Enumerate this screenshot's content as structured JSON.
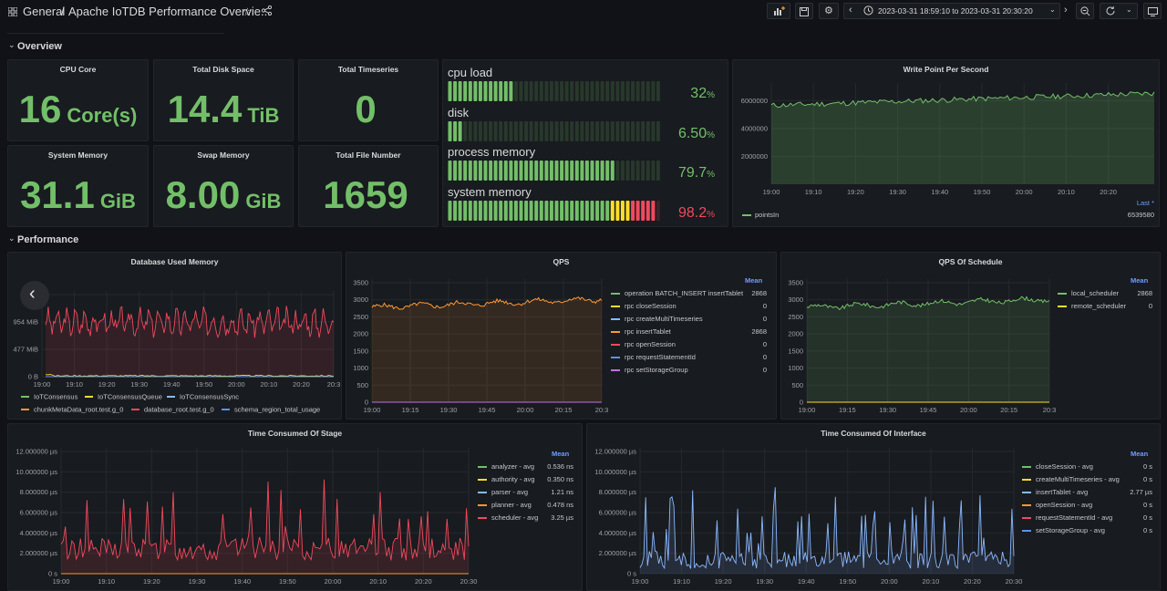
{
  "header": {
    "breadcrumb_folder": "General",
    "breadcrumb_sep": "/",
    "dashboard_title": "Apache IoTDB Performance Overvie...",
    "time_range": "2023-03-31 18:59:10 to 2023-03-31 20:30:20",
    "icons": [
      "grid-icon",
      "star-icon",
      "share-icon",
      "add-panel-icon",
      "save-icon",
      "settings-icon",
      "chevron-left-icon",
      "clock-icon",
      "chevron-down-icon",
      "chevron-right-icon",
      "zoom-out-icon",
      "refresh-icon",
      "chevron-down-icon",
      "tv-icon"
    ]
  },
  "rows": {
    "overview": "Overview",
    "performance": "Performance"
  },
  "stats": [
    {
      "title": "CPU Core",
      "value": "16",
      "unit": "Core(s)"
    },
    {
      "title": "Total Disk Space",
      "value": "14.4",
      "unit": "TiB"
    },
    {
      "title": "Total Timeseries",
      "value": "0",
      "unit": ""
    },
    {
      "title": "System Memory",
      "value": "31.1",
      "unit": "GiB"
    },
    {
      "title": "Swap Memory",
      "value": "8.00",
      "unit": "GiB"
    },
    {
      "title": "Total File Number",
      "value": "1659",
      "unit": ""
    }
  ],
  "bargauge": [
    {
      "name": "cpu load",
      "value": "32",
      "unit": "%",
      "fraction": 0.32,
      "color": "#73bf69"
    },
    {
      "name": "disk",
      "value": "6.50",
      "unit": "%",
      "fraction": 0.065,
      "color": "#73bf69"
    },
    {
      "name": "process memory",
      "value": "79.7",
      "unit": "%",
      "fraction": 0.797,
      "color": "#73bf69"
    },
    {
      "name": "system memory",
      "value": "98.2",
      "unit": "%",
      "fraction": 0.982,
      "color": "#f2495c"
    }
  ],
  "write_point": {
    "title": "Write Point Per Second",
    "y_ticks": [
      "6000000",
      "4000000",
      "2000000"
    ],
    "x_ticks": [
      "19:00",
      "19:10",
      "19:20",
      "19:30",
      "19:40",
      "19:50",
      "20:00",
      "20:10",
      "20:20"
    ],
    "legend_header": "Last *",
    "legend": [
      {
        "name": "pointsIn",
        "value": "6539580",
        "color": "#73bf69"
      }
    ]
  },
  "db_memory": {
    "title": "Database Used Memory",
    "y_ticks": [
      "1.4",
      "954 MiB",
      "477 MiB",
      "0 B"
    ],
    "x_ticks": [
      "19:00",
      "19:10",
      "19:20",
      "19:30",
      "19:40",
      "19:50",
      "20:00",
      "20:10",
      "20:20",
      "20:3"
    ],
    "legend": [
      {
        "name": "IoTConsensus",
        "color": "#73bf69"
      },
      {
        "name": "IoTConsensusQueue",
        "color": "#fade2a"
      },
      {
        "name": "IoTConsensusSync",
        "color": "#8ab8ff"
      },
      {
        "name": "chunkMetaData_root.test.g_0",
        "color": "#ff9830"
      },
      {
        "name": "database_root.test.g_0",
        "color": "#f2495c"
      },
      {
        "name": "schema_region_total_usage",
        "color": "#5794f2"
      }
    ]
  },
  "qps": {
    "title": "QPS",
    "y_ticks": [
      "3500",
      "3000",
      "2500",
      "2000",
      "1500",
      "1000",
      "500",
      "0"
    ],
    "x_ticks": [
      "19:00",
      "19:15",
      "19:30",
      "19:45",
      "20:00",
      "20:15",
      "20:3"
    ],
    "legend_header": "Mean",
    "legend": [
      {
        "name": "operation BATCH_INSERT insertTablet",
        "value": "2868",
        "color": "#73bf69"
      },
      {
        "name": "rpc closeSession",
        "value": "0",
        "color": "#fade2a"
      },
      {
        "name": "rpc createMultiTimeseries",
        "value": "0",
        "color": "#8ab8ff"
      },
      {
        "name": "rpc insertTablet",
        "value": "2868",
        "color": "#ff9830"
      },
      {
        "name": "rpc openSession",
        "value": "0",
        "color": "#f2495c"
      },
      {
        "name": "rpc requestStatementId",
        "value": "0",
        "color": "#5794f2"
      },
      {
        "name": "rpc setStorageGroup",
        "value": "0",
        "color": "#b877d9"
      }
    ]
  },
  "qps_schedule": {
    "title": "QPS Of Schedule",
    "y_ticks": [
      "3500",
      "3000",
      "2500",
      "2000",
      "1500",
      "1000",
      "500",
      "0"
    ],
    "x_ticks": [
      "19:00",
      "19:15",
      "19:30",
      "19:45",
      "20:00",
      "20:15",
      "20:3"
    ],
    "legend_header": "Mean",
    "legend": [
      {
        "name": "local_scheduler",
        "value": "2868",
        "color": "#73bf69"
      },
      {
        "name": "remote_scheduler",
        "value": "0",
        "color": "#fade2a"
      }
    ]
  },
  "stage": {
    "title": "Time Consumed Of Stage",
    "y_ticks": [
      "12.000000 µs",
      "10.000000 µs",
      "8.000000 µs",
      "6.000000 µs",
      "4.000000 µs",
      "2.000000 µs",
      "0 s"
    ],
    "x_ticks": [
      "19:00",
      "19:10",
      "19:20",
      "19:30",
      "19:40",
      "19:50",
      "20:00",
      "20:10",
      "20:20",
      "20:30"
    ],
    "legend_header": "Mean",
    "legend": [
      {
        "name": "analyzer - avg",
        "value": "0.536 ns",
        "color": "#73bf69"
      },
      {
        "name": "authority - avg",
        "value": "0.350 ns",
        "color": "#fade2a"
      },
      {
        "name": "parser - avg",
        "value": "1.21 ns",
        "color": "#8ab8ff"
      },
      {
        "name": "planner - avg",
        "value": "0.478 ns",
        "color": "#ff9830"
      },
      {
        "name": "scheduler - avg",
        "value": "3.25 µs",
        "color": "#f2495c"
      }
    ]
  },
  "interface": {
    "title": "Time Consumed Of Interface",
    "y_ticks": [
      "12.000000 µs",
      "10.000000 µs",
      "8.000000 µs",
      "6.000000 µs",
      "4.000000 µs",
      "2.000000 µs",
      "0 s"
    ],
    "x_ticks": [
      "19:00",
      "19:10",
      "19:20",
      "19:30",
      "19:40",
      "19:50",
      "20:00",
      "20:10",
      "20:20",
      "20:30"
    ],
    "legend_header": "Mean",
    "legend": [
      {
        "name": "closeSession - avg",
        "value": "0 s",
        "color": "#73bf69"
      },
      {
        "name": "createMultiTimeseries - avg",
        "value": "0 s",
        "color": "#fade2a"
      },
      {
        "name": "insertTablet - avg",
        "value": "2.77 µs",
        "color": "#8ab8ff"
      },
      {
        "name": "openSession - avg",
        "value": "0 s",
        "color": "#ff9830"
      },
      {
        "name": "requestStatementId - avg",
        "value": "0 s",
        "color": "#f2495c"
      },
      {
        "name": "setStorageGroup - avg",
        "value": "0 s",
        "color": "#5794f2"
      }
    ]
  }
}
